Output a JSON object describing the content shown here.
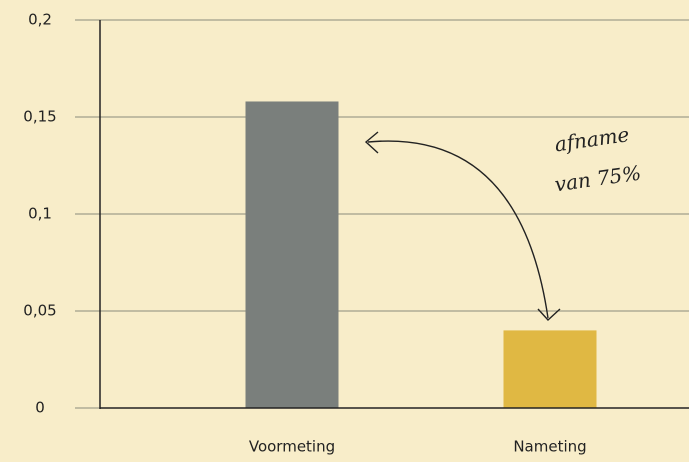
{
  "chart_data": {
    "type": "bar",
    "categories": [
      "Voormeting",
      "Nameting"
    ],
    "values": [
      0.158,
      0.04
    ],
    "colors": [
      "#7a7f7c",
      "#e0b843"
    ],
    "ylim": [
      0,
      0.2
    ],
    "yticks": [
      0,
      {
        "value": 0.05,
        "label": "0,05"
      },
      {
        "value": 0.1,
        "label": "0,1"
      },
      {
        "value": 0.15,
        "label": "0,15"
      },
      {
        "value": 0.2,
        "label": "0,2"
      }
    ],
    "grid": true,
    "annotation": [
      "afname",
      "van 75%"
    ]
  }
}
